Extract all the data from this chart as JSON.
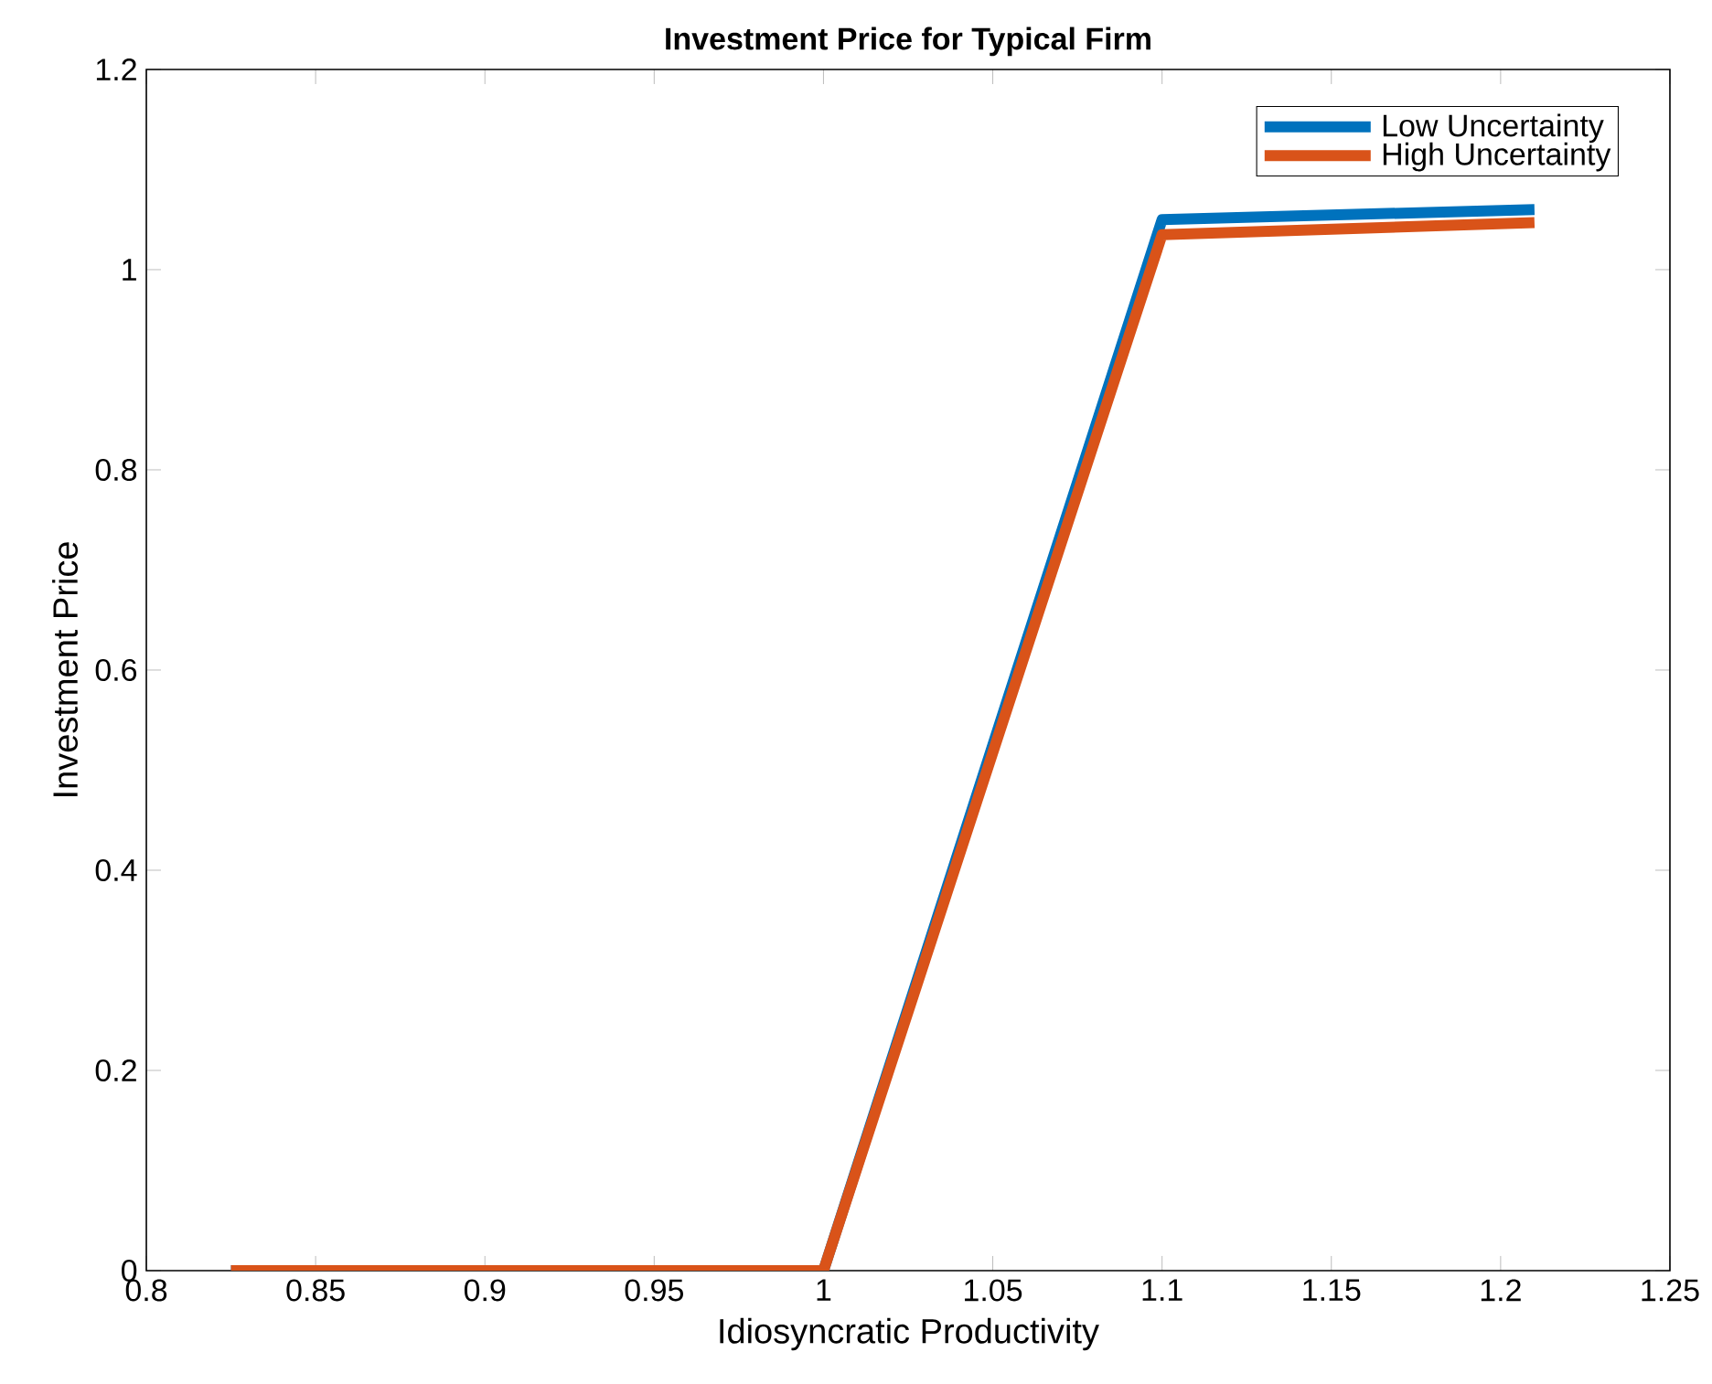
{
  "chart_data": {
    "type": "line",
    "title": "Investment Price for Typical Firm",
    "xlabel": "Idiosyncratic Productivity",
    "ylabel": "Investment Price",
    "x": [
      0.825,
      1.0,
      1.1,
      1.21
    ],
    "series": [
      {
        "name": "Low Uncertainty",
        "color": "#0072bd",
        "values": [
          0,
          0,
          1.05,
          1.06
        ]
      },
      {
        "name": "High Uncertainty",
        "color": "#d95319",
        "values": [
          0,
          0,
          1.035,
          1.047
        ]
      }
    ],
    "xlim": [
      0.8,
      1.25
    ],
    "ylim": [
      0,
      1.2
    ],
    "xticks": [
      0.8,
      0.85,
      0.9,
      0.95,
      1,
      1.05,
      1.1,
      1.15,
      1.2,
      1.25
    ],
    "yticks": [
      0,
      0.2,
      0.4,
      0.6,
      0.8,
      1,
      1.2
    ],
    "legend": "top right",
    "grid": false,
    "marker": "none",
    "line_style": "solid"
  }
}
